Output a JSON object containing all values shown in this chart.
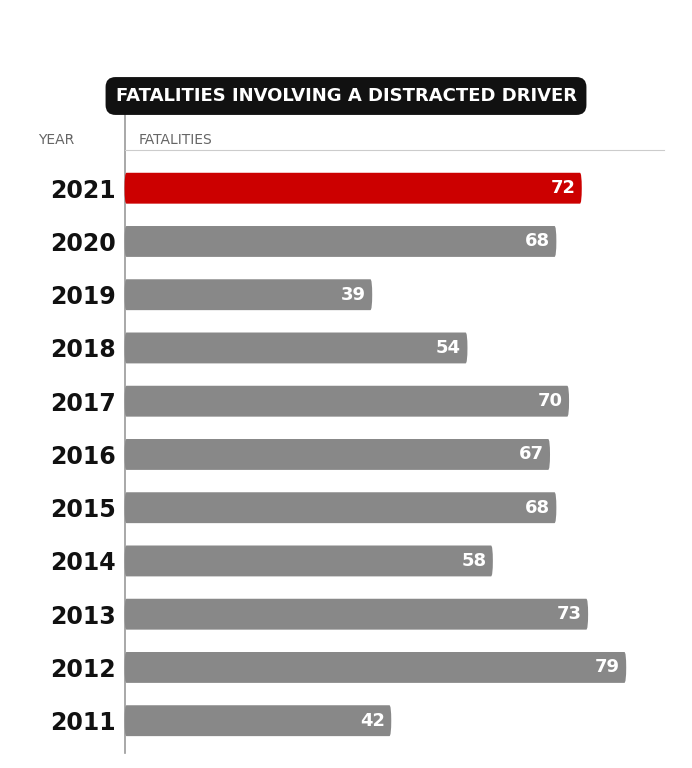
{
  "title": "FATALITIES INVOLVING A DISTRACTED DRIVER",
  "col_year": "YEAR",
  "col_fatalities": "FATALITIES",
  "years": [
    "2021",
    "2020",
    "2019",
    "2018",
    "2017",
    "2016",
    "2015",
    "2014",
    "2013",
    "2012",
    "2011"
  ],
  "values": [
    72,
    68,
    39,
    54,
    70,
    67,
    68,
    58,
    73,
    79,
    42
  ],
  "bar_colors": [
    "#cc0000",
    "#888888",
    "#888888",
    "#888888",
    "#888888",
    "#888888",
    "#888888",
    "#888888",
    "#888888",
    "#888888",
    "#888888"
  ],
  "background_color": "#ffffff",
  "title_bg_color": "#111111",
  "title_text_color": "#ffffff",
  "label_color": "#ffffff",
  "year_label_color": "#111111",
  "divider_color": "#999999",
  "max_value": 85,
  "bar_height": 0.58,
  "bar_gap": 1.0,
  "year_font_size": 17,
  "value_font_size": 13,
  "header_font_size": 10,
  "title_font_size": 13
}
